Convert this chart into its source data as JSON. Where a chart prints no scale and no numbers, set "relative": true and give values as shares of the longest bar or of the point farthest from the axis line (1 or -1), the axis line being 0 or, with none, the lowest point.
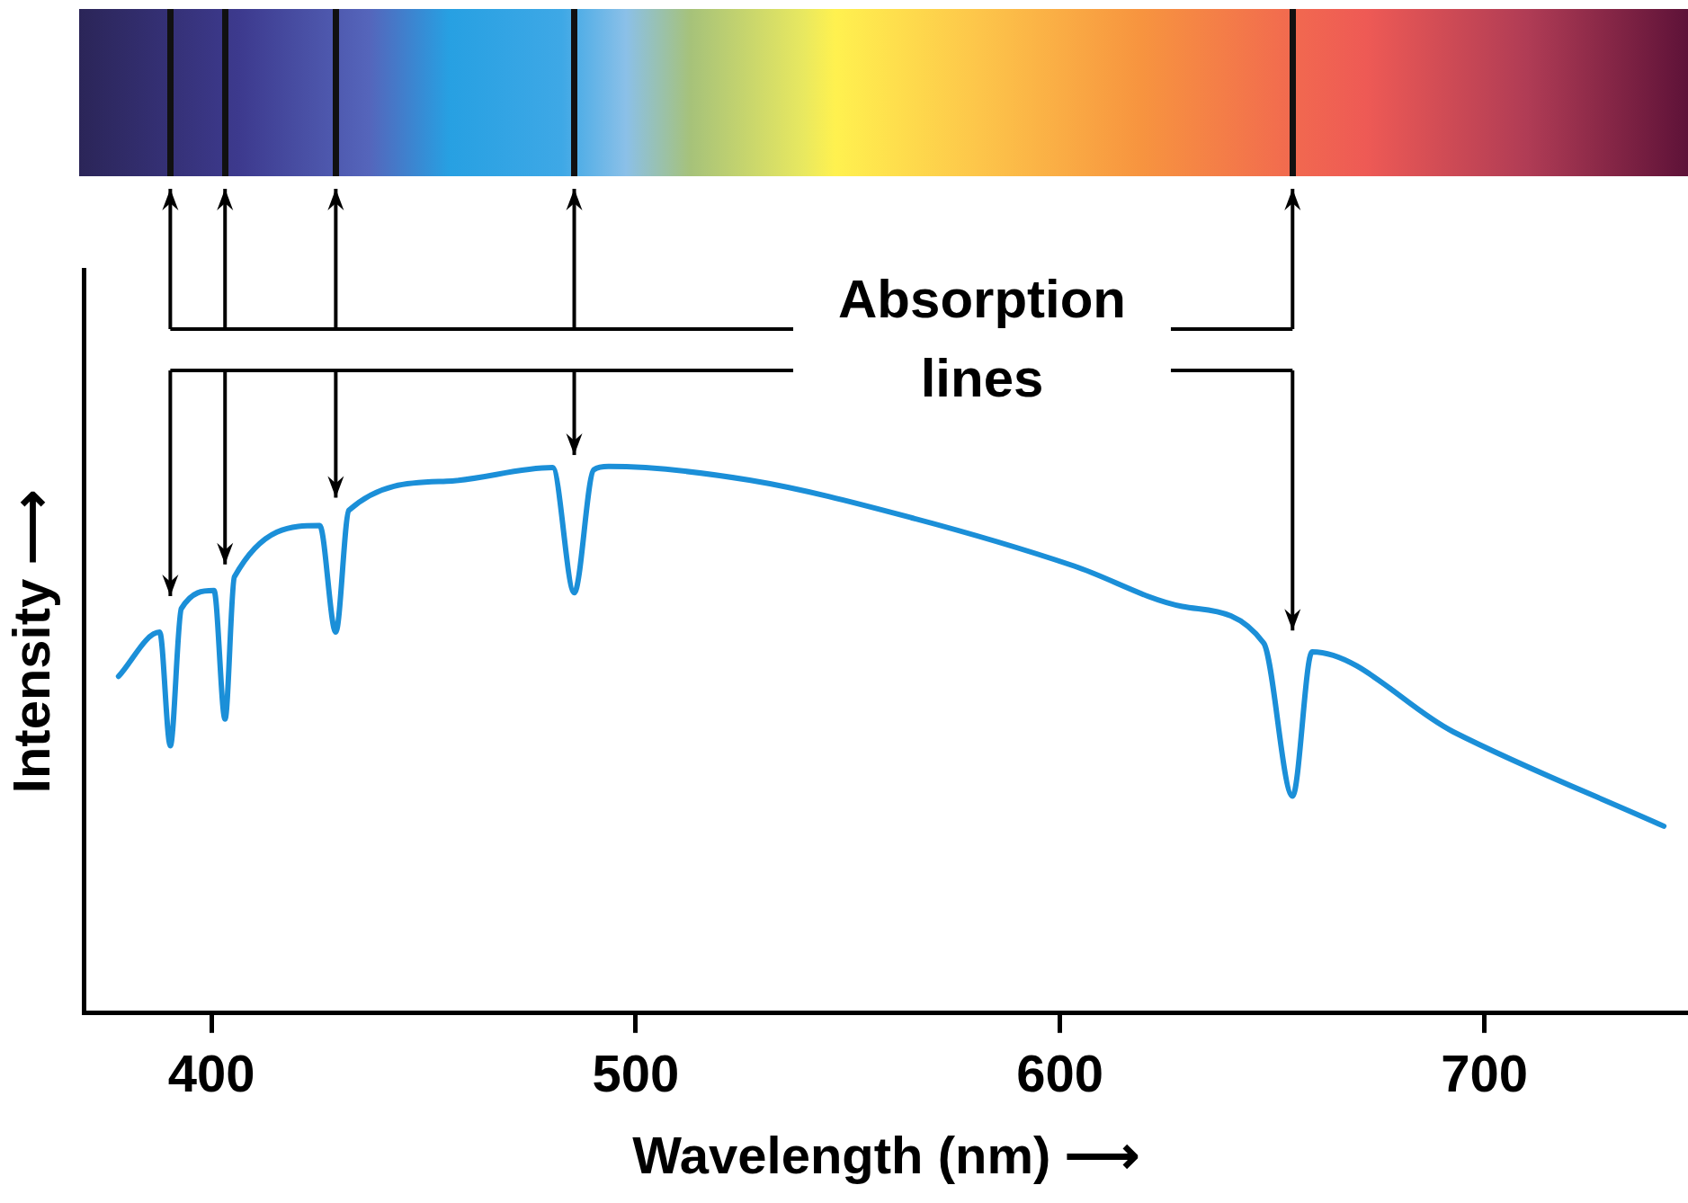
{
  "chart_data": {
    "type": "line",
    "relative": true,
    "xlabel": "Wavelength (nm) ⟶",
    "ylabel": "Intensity ⟶",
    "annotations": [
      "Absorption lines"
    ],
    "xlim": [
      370,
      748
    ],
    "xticks": [
      400,
      500,
      600,
      700
    ],
    "grid": false,
    "legend": false,
    "marker": "none",
    "line_style": "solid",
    "series": [
      {
        "color": "#1b8fd8",
        "x": [
          378.1,
          387.8,
          390.3,
          392.9,
          400.6,
          403.2,
          405.4,
          425.5,
          429.3,
          432.4,
          455.4,
          480.4,
          485.5,
          490.1,
          493.6,
          526.8,
          565.1,
          603.3,
          628.8,
          648.0,
          654.8,
          659.4,
          692.6,
          742.3
        ],
        "values": [
          0.616,
          0.697,
          0.489,
          0.74,
          0.773,
          0.538,
          0.798,
          0.892,
          0.697,
          0.92,
          0.973,
          0.998,
          0.769,
          0.994,
          1.0,
          0.975,
          0.906,
          0.818,
          0.744,
          0.677,
          0.397,
          0.661,
          0.515,
          0.342
        ]
      }
    ]
  }
}
